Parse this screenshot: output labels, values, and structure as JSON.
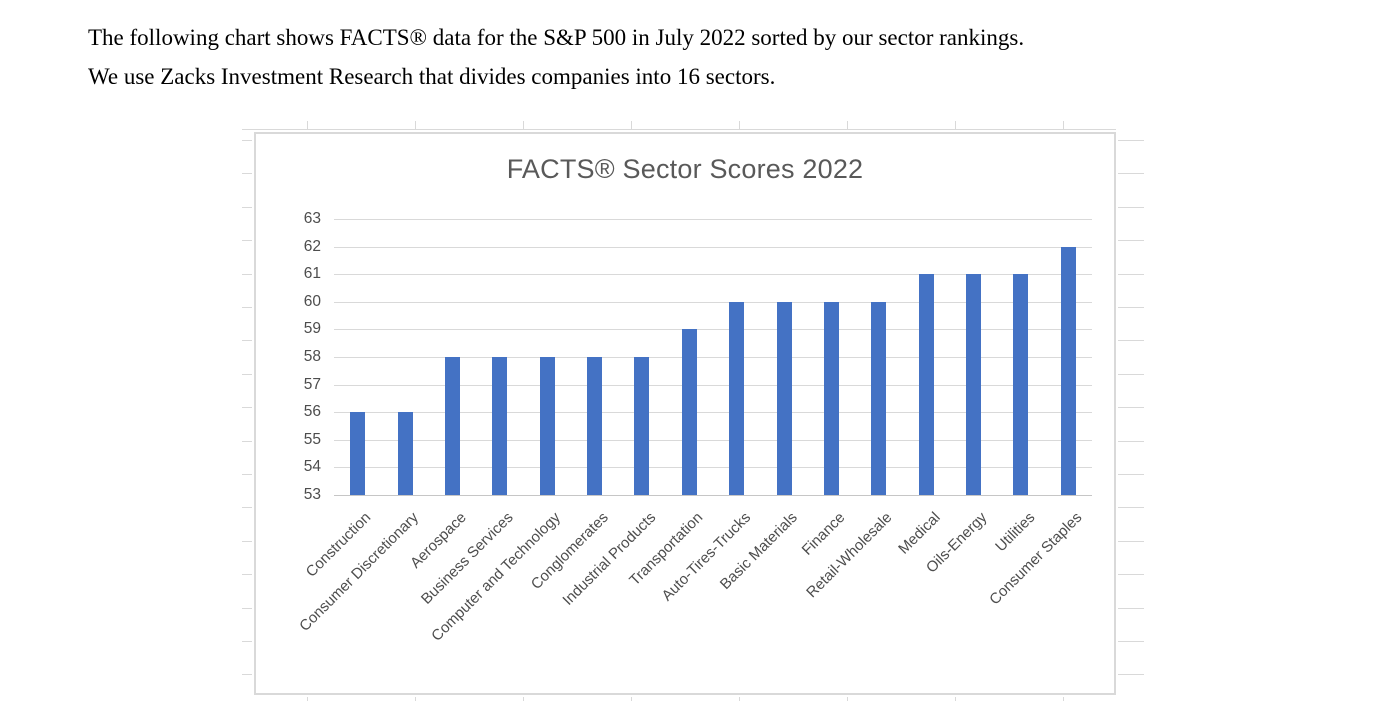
{
  "intro": {
    "line1": "The following chart shows FACTS® data for the S&P 500 in July 2022 sorted by our sector rankings.",
    "line2": "We use Zacks Investment Research that divides companies into 16 sectors."
  },
  "chart_data": {
    "type": "bar",
    "title": "FACTS® Sector Scores 2022",
    "categories": [
      "Construction",
      "Consumer Discretionary",
      "Aerospace",
      "Business Services",
      "Computer and Technology",
      "Conglomerates",
      "Industrial Products",
      "Transportation",
      "Auto-Tires-Trucks",
      "Basic Materials",
      "Finance",
      "Retail-Wholesale",
      "Medical",
      "Oils-Energy",
      "Utilities",
      "Consumer Staples"
    ],
    "values": [
      56,
      56,
      58,
      58,
      58,
      58,
      58,
      59,
      60,
      60,
      60,
      60,
      61,
      61,
      61,
      62
    ],
    "xlabel": "",
    "ylabel": "",
    "ylim": [
      53,
      63
    ],
    "yticks": [
      53,
      54,
      55,
      56,
      57,
      58,
      59,
      60,
      61,
      62,
      63
    ],
    "grid": true,
    "legend": "none",
    "colors": {
      "bar": "#4472C4",
      "gridline": "#d9d9d9",
      "axis_line": "#c6c6c6",
      "tick_text": "#4d4d4d",
      "title_text": "#595959"
    }
  }
}
